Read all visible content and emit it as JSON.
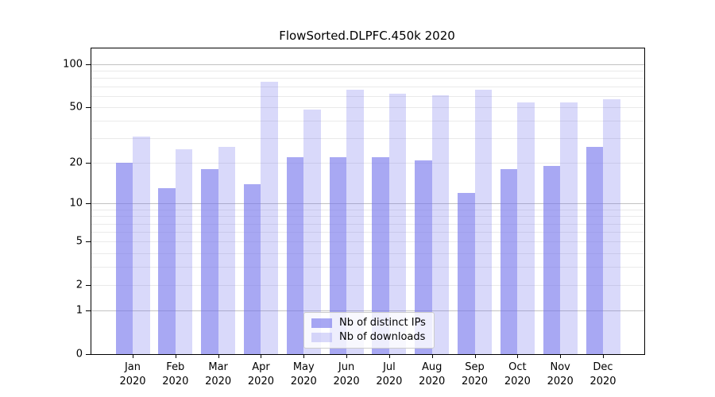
{
  "title": "FlowSorted.DLPFC.450k 2020",
  "colors": {
    "ips_bar": "rgba(114,114,235,0.62)",
    "downloads_bar": "rgba(114,114,235,0.27)",
    "grid_major": "#c2c2c2",
    "grid_minor": "#eaeaea",
    "spine": "#000000",
    "text": "#000000",
    "legend_background": "rgba(255,255,255,0.8)",
    "legend_border": "#cccccc"
  },
  "legend": {
    "items": [
      {
        "label": "Nb of distinct IPs",
        "series": "ips"
      },
      {
        "label": "Nb of downloads",
        "series": "downloads"
      }
    ],
    "position": "lower center-right"
  },
  "chart_data": {
    "type": "bar",
    "title": "FlowSorted.DLPFC.450k 2020",
    "categories": [
      "Jan",
      "Feb",
      "Mar",
      "Apr",
      "May",
      "Jun",
      "Jul",
      "Aug",
      "Sep",
      "Oct",
      "Nov",
      "Dec"
    ],
    "year": "2020",
    "series": [
      {
        "name": "Nb of distinct IPs",
        "values": [
          20,
          13,
          18,
          14,
          22,
          22,
          22,
          21,
          12,
          18,
          19,
          26
        ]
      },
      {
        "name": "Nb of downloads",
        "values": [
          31,
          25,
          26,
          75,
          48,
          66,
          62,
          61,
          66,
          54,
          54,
          57
        ]
      }
    ],
    "xlabel": "",
    "ylabel": "",
    "yscale": "log1p",
    "ylim": [
      0,
      129
    ],
    "yticks": [
      0,
      1,
      2,
      5,
      10,
      20,
      50,
      100
    ],
    "grid_major": [
      1,
      10,
      100
    ],
    "grid_minor": [
      2,
      3,
      4,
      5,
      6,
      7,
      8,
      9,
      20,
      30,
      40,
      50,
      60,
      70,
      80,
      90
    ],
    "grid": "on",
    "legend_position": "lower center-right"
  }
}
